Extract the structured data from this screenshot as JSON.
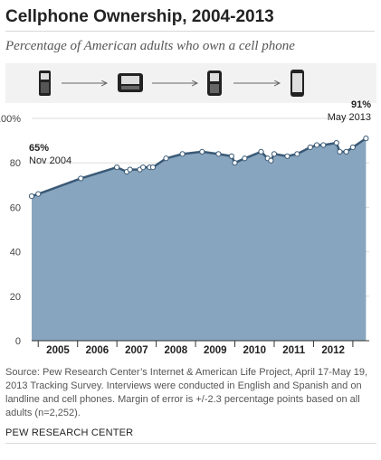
{
  "header": {
    "title": "Cellphone Ownership, 2004-2013",
    "subtitle": "Percentage of American adults who own a cell phone"
  },
  "icons": [
    "flip-phone-icon",
    "sidekick-phone-icon",
    "blackberry-phone-icon",
    "smartphone-icon"
  ],
  "colors": {
    "area": "#87a5be",
    "line": "#3b5a76",
    "point": "#ffffff",
    "text": "#222222"
  },
  "chart_data": {
    "type": "area",
    "x": [
      "Nov 2004",
      "Jan 2005",
      "Feb 2006",
      "Jan 2007",
      "Apr 2007",
      "May 2007",
      "Aug 2007",
      "Sep 2007",
      "Nov 2007",
      "Dec 2007",
      "Apr 2008",
      "Sep 2008",
      "Mar 2009",
      "Aug 2009",
      "Dec 2009",
      "Jan 2010",
      "Apr 2010",
      "Sep 2010",
      "Nov 2010",
      "Dec 2010",
      "Jan 2011",
      "May 2011",
      "Aug 2011",
      "Dec 2011",
      "Feb 2012",
      "Apr 2012",
      "Aug 2012",
      "Sep 2012",
      "Nov 2012",
      "Jan 2013",
      "May 2013"
    ],
    "values": [
      65,
      66,
      73,
      78,
      76,
      77,
      77,
      78,
      78,
      78,
      82,
      84,
      85,
      84,
      83,
      80,
      82,
      85,
      82,
      81,
      84,
      83,
      84,
      87,
      88,
      88,
      89,
      85,
      85,
      87,
      91
    ],
    "ylim": [
      0,
      100
    ],
    "y_ticks": [
      "0",
      "20",
      "40",
      "60",
      "80",
      "100%"
    ],
    "x_ticks": [
      "2005",
      "2006",
      "2007",
      "2008",
      "2009",
      "2010",
      "2011",
      "2012"
    ],
    "xlim": [
      "Nov 2004",
      "Jun 2013"
    ],
    "grid": true,
    "annotations": [
      {
        "value": "65%",
        "date": "Nov 2004"
      },
      {
        "value": "91%",
        "date": "May 2013"
      }
    ]
  },
  "footer": {
    "source": "Source: Pew Research Center’s Internet & American Life Project, April 17-May 19, 2013 Tracking Survey. Interviews were conducted in English and Spanish and on landline and cell phones.  Margin of error is +/-2.3 percentage points based on all adults (n=2,252).",
    "brand": "PEW RESEARCH CENTER"
  }
}
